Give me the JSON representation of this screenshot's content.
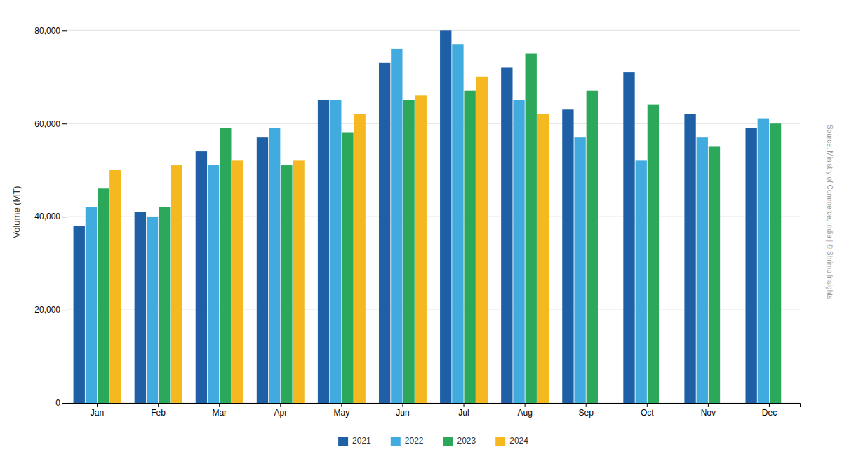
{
  "chart_data": {
    "type": "bar",
    "categories": [
      "Jan",
      "Feb",
      "Mar",
      "Apr",
      "May",
      "Jun",
      "Jul",
      "Aug",
      "Sep",
      "Oct",
      "Nov",
      "Dec"
    ],
    "series": [
      {
        "name": "2021",
        "color": "#1F5FA6",
        "values": [
          38000,
          41000,
          54000,
          57000,
          65000,
          73000,
          80000,
          72000,
          63000,
          71000,
          62000,
          59000
        ]
      },
      {
        "name": "2022",
        "color": "#41AADF",
        "values": [
          42000,
          40000,
          51000,
          59000,
          65000,
          76000,
          77000,
          65000,
          57000,
          52000,
          57000,
          61000
        ]
      },
      {
        "name": "2023",
        "color": "#2CA85A",
        "values": [
          46000,
          42000,
          59000,
          51000,
          58000,
          65000,
          67000,
          75000,
          67000,
          64000,
          55000,
          60000
        ]
      },
      {
        "name": "2024",
        "color": "#F5B820",
        "values": [
          50000,
          51000,
          52000,
          52000,
          62000,
          66000,
          70000,
          62000,
          null,
          null,
          null,
          null
        ]
      }
    ],
    "y_label": "Volume (MT)",
    "ylim": [
      0,
      82000
    ],
    "yticks": [
      0,
      {
        "value": 20000,
        "label": "20,000"
      },
      {
        "value": 40000,
        "label": "40,000"
      },
      {
        "value": 60000,
        "label": "60,000"
      },
      {
        "value": 80000,
        "label": "80,000"
      }
    ],
    "grid": true,
    "legend": "bottom",
    "annotations": [
      "Source: Ministry of Commerce, India | © Shrimp Insights"
    ]
  }
}
